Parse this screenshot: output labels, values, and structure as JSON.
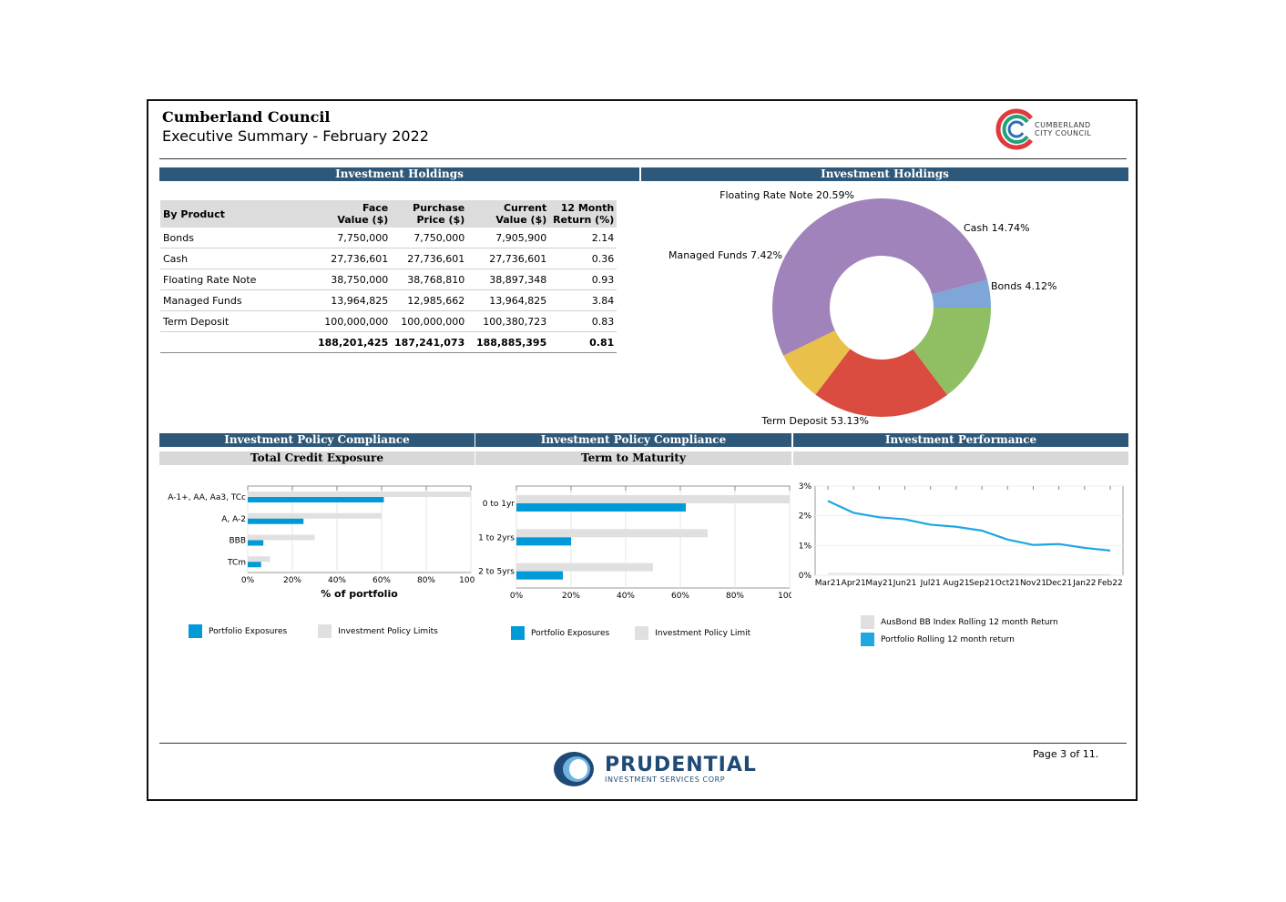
{
  "header": {
    "title": "Cumberland Council",
    "subtitle": "Executive Summary - February 2022",
    "logo_text_line1": "CUMBERLAND",
    "logo_text_line2": "CITY COUNCIL"
  },
  "holdings": {
    "band_title": "Investment Holdings",
    "columns": [
      "By Product",
      "Face\nValue ($)",
      "Purchase\nPrice ($)",
      "Current\nValue ($)",
      "12 Month\nReturn (%)"
    ],
    "rows": [
      [
        "Bonds",
        "7,750,000",
        "7,750,000",
        "7,905,900",
        "2.14"
      ],
      [
        "Cash",
        "27,736,601",
        "27,736,601",
        "27,736,601",
        "0.36"
      ],
      [
        "Floating Rate Note",
        "38,750,000",
        "38,768,810",
        "38,897,348",
        "0.93"
      ],
      [
        "Managed Funds",
        "13,964,825",
        "12,985,662",
        "13,964,825",
        "3.84"
      ],
      [
        "Term Deposit",
        "100,000,000",
        "100,000,000",
        "100,380,723",
        "0.83"
      ]
    ],
    "total": [
      "",
      "188,201,425",
      "187,241,073",
      "188,885,395",
      "0.81"
    ]
  },
  "holdings_pie": {
    "band_title": "Investment Holdings",
    "chart_data": {
      "type": "pie",
      "slices": [
        {
          "label": "Bonds 4.12%",
          "value": 4.12,
          "color": "#7ea6d6"
        },
        {
          "label": "Term Deposit 53.13%",
          "value": 53.13,
          "color": "#a083bb"
        },
        {
          "label": "Managed Funds 7.42%",
          "value": 7.42,
          "color": "#e8c04a"
        },
        {
          "label": "Floating Rate Note 20.59%",
          "value": 20.59,
          "color": "#d94c3f"
        },
        {
          "label": "Cash 14.74%",
          "value": 14.74,
          "color": "#8fbf62"
        }
      ]
    }
  },
  "compliance_credit": {
    "band_title": "Investment Policy Compliance",
    "sub_title": "Total Credit Exposure",
    "chart_data": {
      "type": "bar",
      "categories": [
        "A-1+, AA, Aa3, TCc",
        "A, A-2",
        "BBB",
        "TCm"
      ],
      "series": [
        {
          "name": "Portfolio Exposures",
          "values": [
            61,
            25,
            7,
            6
          ],
          "color": "#009ad8"
        },
        {
          "name": "Investment Policy Limits",
          "values": [
            100,
            60,
            30,
            10
          ],
          "color": "#e0e0e0"
        }
      ],
      "xlim": [
        0,
        100
      ],
      "xticks": [
        "0%",
        "20%",
        "40%",
        "60%",
        "80%",
        "100%"
      ],
      "xlabel": "% of portfolio"
    }
  },
  "compliance_term": {
    "band_title": "Investment Policy Compliance",
    "sub_title": "Term to Maturity",
    "chart_data": {
      "type": "bar",
      "categories": [
        "0 to 1yr",
        "1 to 2yrs",
        "2 to 5yrs"
      ],
      "series": [
        {
          "name": "Portfolio Exposures",
          "values": [
            62,
            20,
            17
          ],
          "color": "#009ad8"
        },
        {
          "name": "Investment Policy Limit",
          "values": [
            100,
            70,
            50
          ],
          "color": "#e0e0e0"
        }
      ],
      "xlim": [
        0,
        100
      ],
      "xticks": [
        "0%",
        "20%",
        "40%",
        "60%",
        "80%",
        "100%"
      ]
    }
  },
  "performance": {
    "band_title": "Investment Performance",
    "chart_data": {
      "type": "line",
      "x": [
        "Mar21",
        "Apr21",
        "May21",
        "Jun21",
        "Jul21",
        "Aug21",
        "Sep21",
        "Oct21",
        "Nov21",
        "Dec21",
        "Jan22",
        "Feb22"
      ],
      "series": [
        {
          "name": "AusBond BB Index Rolling 12 month Return",
          "values": [
            0.05,
            0.05,
            0.04,
            0.04,
            0.03,
            0.03,
            0.03,
            0.03,
            0.02,
            0.02,
            0.01,
            0.01
          ],
          "color": "#e0e0e0"
        },
        {
          "name": "Portfolio Rolling 12 month return",
          "values": [
            2.5,
            2.1,
            1.95,
            1.88,
            1.7,
            1.63,
            1.5,
            1.2,
            1.02,
            1.05,
            0.92,
            0.83
          ],
          "color": "#1ea7e1"
        }
      ],
      "ylim": [
        0,
        3
      ],
      "yticks": [
        "0%",
        "1%",
        "2%",
        "3%"
      ]
    }
  },
  "footer": {
    "page": "Page 3 of 11.",
    "brand": "PRUDENTIAL",
    "brand_sub": "INVESTMENT SERVICES CORP"
  }
}
